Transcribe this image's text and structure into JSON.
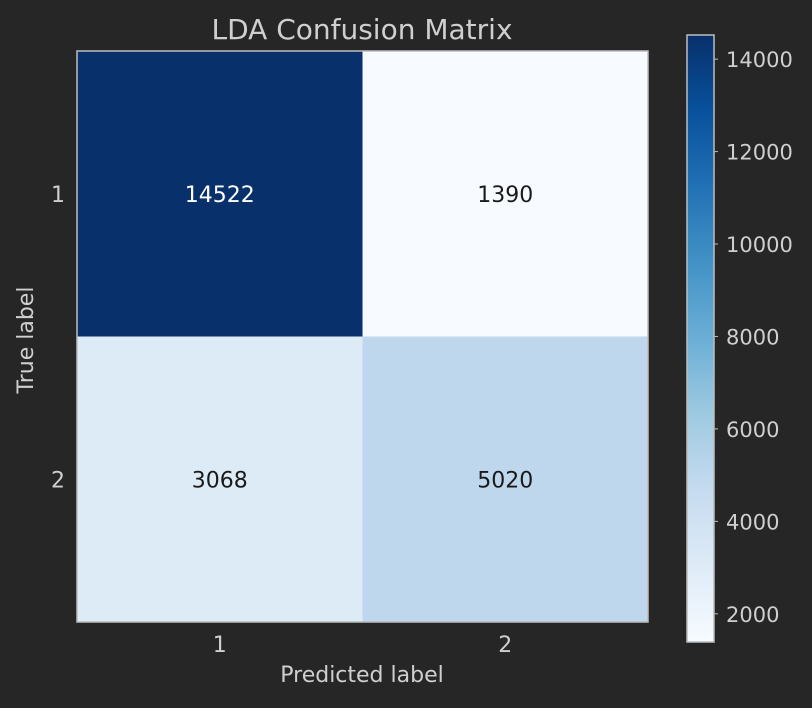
{
  "chart_data": {
    "type": "heatmap",
    "title": "LDA Confusion Matrix",
    "xlabel": "Predicted label",
    "ylabel": "True label",
    "x_categories": [
      "1",
      "2"
    ],
    "y_categories": [
      "1",
      "2"
    ],
    "values": [
      [
        14522,
        1390
      ],
      [
        3068,
        5020
      ]
    ],
    "colormap": "Blues",
    "colorbar": {
      "range": [
        1390,
        14522
      ],
      "ticks": [
        2000,
        4000,
        6000,
        8000,
        10000,
        12000,
        14000
      ],
      "tick_labels": [
        "2000",
        "4000",
        "6000",
        "8000",
        "10000",
        "12000",
        "14000"
      ]
    },
    "grid": false
  },
  "colors": {
    "background": "#262626",
    "text_light": "#cfcfcf",
    "text_on_light_cell": "#1a1a1a",
    "text_on_dark_cell": "#ffffff",
    "frame": "#bdbdbd",
    "cmap_low": "#f7fbff",
    "cmap_high": "#08306b"
  }
}
